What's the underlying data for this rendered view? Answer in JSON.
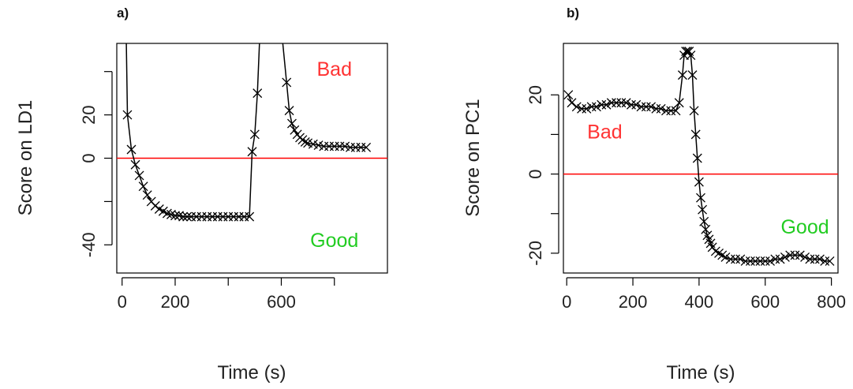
{
  "chart_data": [
    {
      "type": "line",
      "panel_label": "a)",
      "title": "",
      "xlabel": "Time (s)",
      "ylabel": "Score on LD1",
      "xlim": [
        -20,
        1000
      ],
      "ylim": [
        -53,
        53
      ],
      "xticks": [
        0,
        200,
        400,
        600,
        800
      ],
      "xtick_labels": [
        "0",
        "200",
        "",
        "600",
        ""
      ],
      "yticks": [
        -40,
        -20,
        0,
        20,
        40
      ],
      "ytick_labels": [
        "-40",
        "",
        "0",
        "20",
        ""
      ],
      "grid": false,
      "legend": "none",
      "reference_line": {
        "y": 0,
        "color": "#ff0000"
      },
      "series": [
        {
          "marker": "x",
          "color": "#000000",
          "x": [
            15,
            20,
            35,
            50,
            65,
            80,
            95,
            110,
            125,
            140,
            155,
            170,
            185,
            200,
            215,
            230,
            245,
            260,
            280,
            300,
            320,
            340,
            360,
            380,
            400,
            420,
            440,
            460,
            480,
            490,
            500,
            510,
            520,
            560,
            600,
            620,
            630,
            640,
            650,
            660,
            670,
            680,
            690,
            700,
            720,
            740,
            760,
            780,
            800,
            820,
            840,
            860,
            880,
            900,
            920
          ],
          "y": [
            60,
            20,
            4,
            -3,
            -8,
            -13,
            -17,
            -20,
            -22,
            -23.5,
            -24.5,
            -25.5,
            -26,
            -26.5,
            -26.5,
            -27,
            -27,
            -27,
            -27,
            -27,
            -27,
            -27,
            -27,
            -27,
            -27,
            -27,
            -27,
            -27,
            -27,
            3,
            11,
            30,
            60,
            60,
            60,
            35,
            22,
            16,
            13,
            11,
            9.5,
            8.5,
            7.5,
            7,
            6.5,
            6,
            5.5,
            5.5,
            5.5,
            5.5,
            5.5,
            5,
            5,
            5,
            5
          ]
        }
      ],
      "annotations": [
        {
          "text": "Bad",
          "color": "#ff3333",
          "x": 800,
          "y": 38
        },
        {
          "text": "Good",
          "color": "#22cc22",
          "x": 800,
          "y": -41
        }
      ]
    },
    {
      "type": "line",
      "panel_label": "b)",
      "title": "",
      "xlabel": "Time (s)",
      "ylabel": "Score on PC1",
      "xlim": [
        -10,
        820
      ],
      "ylim": [
        -25,
        33
      ],
      "xticks": [
        0,
        200,
        400,
        600,
        800
      ],
      "xtick_labels": [
        "0",
        "200",
        "400",
        "600",
        "800"
      ],
      "yticks": [
        -20,
        -10,
        0,
        10,
        20
      ],
      "ytick_labels": [
        "-20",
        "",
        "0",
        "",
        "20"
      ],
      "grid": false,
      "legend": "none",
      "reference_line": {
        "y": 0,
        "color": "#ff0000"
      },
      "series": [
        {
          "marker": "x",
          "color": "#000000",
          "x": [
            5,
            15,
            30,
            45,
            60,
            75,
            90,
            105,
            120,
            135,
            150,
            165,
            180,
            195,
            210,
            225,
            240,
            255,
            270,
            285,
            300,
            315,
            330,
            340,
            350,
            355,
            360,
            365,
            370,
            375,
            380,
            385,
            390,
            395,
            400,
            405,
            410,
            415,
            420,
            425,
            430,
            435,
            440,
            450,
            460,
            470,
            480,
            495,
            510,
            525,
            540,
            555,
            570,
            585,
            600,
            615,
            630,
            645,
            660,
            675,
            690,
            705,
            720,
            735,
            750,
            765,
            780,
            795
          ],
          "y": [
            20,
            18,
            17,
            16.5,
            16.5,
            17,
            17,
            17.5,
            17.5,
            18,
            18,
            18,
            18,
            17.5,
            17.5,
            17,
            17,
            17,
            16.5,
            16.5,
            16,
            16,
            16,
            18,
            25,
            30,
            31,
            31,
            31,
            30,
            25,
            16,
            10,
            4,
            -2,
            -6,
            -9,
            -12,
            -14,
            -15.5,
            -16.5,
            -17.5,
            -18.5,
            -19.5,
            -20,
            -20.5,
            -21,
            -21.5,
            -21.5,
            -21.5,
            -22,
            -22,
            -22,
            -22,
            -22,
            -22,
            -21.5,
            -21.5,
            -21,
            -20.5,
            -20.5,
            -20.5,
            -21,
            -21.5,
            -21.5,
            -21.5,
            -22,
            -22
          ]
        }
      ],
      "annotations": [
        {
          "text": "Bad",
          "color": "#ff3333",
          "x": 115,
          "y": 9
        },
        {
          "text": "Good",
          "color": "#22cc22",
          "x": 720,
          "y": -15
        }
      ]
    }
  ]
}
